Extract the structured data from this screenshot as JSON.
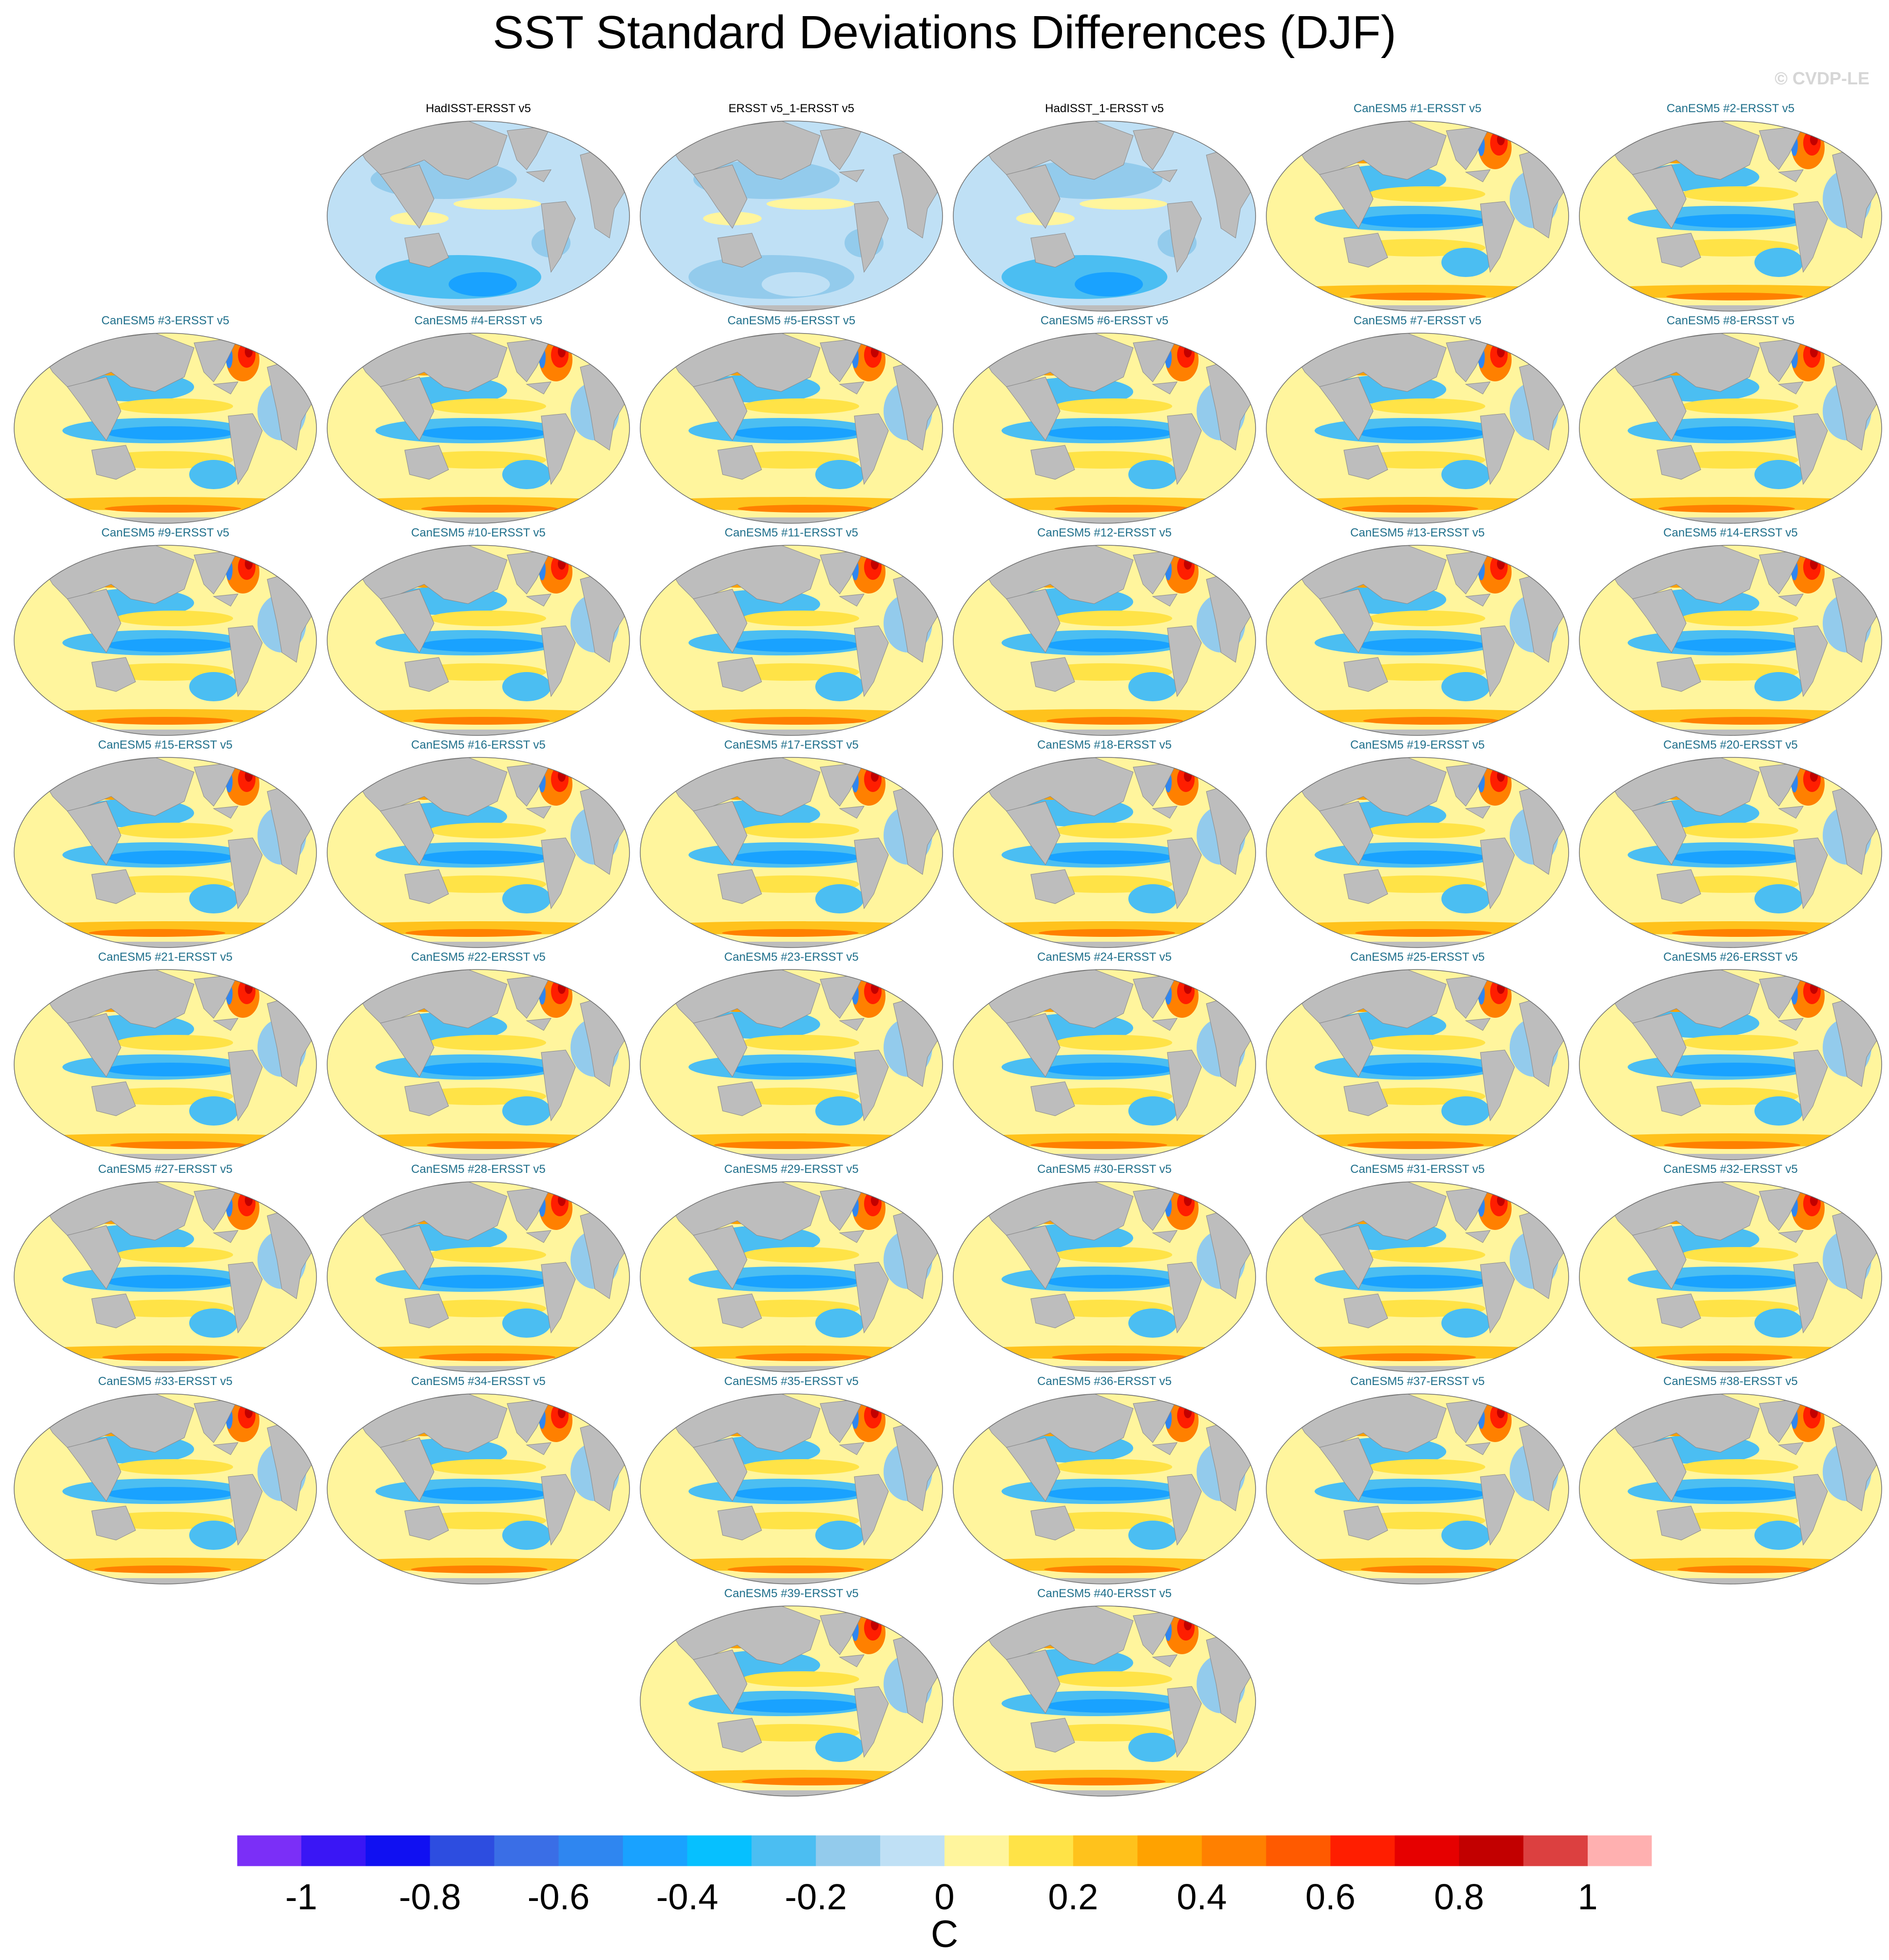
{
  "title": "SST Standard Deviations Differences (DJF)",
  "copyright": "© CVDP-LE",
  "colors": {
    "land": "#bdbdbd",
    "obs_title": "#000000",
    "model_title": "#1f6f8b"
  },
  "panels": [
    {
      "label": "HadISST-ERSST v5",
      "kind": "obs"
    },
    {
      "label": "ERSST v5_1-ERSST v5",
      "kind": "obs"
    },
    {
      "label": "HadISST_1-ERSST v5",
      "kind": "obs"
    },
    {
      "label": "CanESM5 #1-ERSST v5",
      "kind": "model"
    },
    {
      "label": "CanESM5 #2-ERSST v5",
      "kind": "model"
    },
    {
      "label": "CanESM5 #3-ERSST v5",
      "kind": "model"
    },
    {
      "label": "CanESM5 #4-ERSST v5",
      "kind": "model"
    },
    {
      "label": "CanESM5 #5-ERSST v5",
      "kind": "model"
    },
    {
      "label": "CanESM5 #6-ERSST v5",
      "kind": "model"
    },
    {
      "label": "CanESM5 #7-ERSST v5",
      "kind": "model"
    },
    {
      "label": "CanESM5 #8-ERSST v5",
      "kind": "model"
    },
    {
      "label": "CanESM5 #9-ERSST v5",
      "kind": "model"
    },
    {
      "label": "CanESM5 #10-ERSST v5",
      "kind": "model"
    },
    {
      "label": "CanESM5 #11-ERSST v5",
      "kind": "model"
    },
    {
      "label": "CanESM5 #12-ERSST v5",
      "kind": "model"
    },
    {
      "label": "CanESM5 #13-ERSST v5",
      "kind": "model"
    },
    {
      "label": "CanESM5 #14-ERSST v5",
      "kind": "model"
    },
    {
      "label": "CanESM5 #15-ERSST v5",
      "kind": "model"
    },
    {
      "label": "CanESM5 #16-ERSST v5",
      "kind": "model"
    },
    {
      "label": "CanESM5 #17-ERSST v5",
      "kind": "model"
    },
    {
      "label": "CanESM5 #18-ERSST v5",
      "kind": "model"
    },
    {
      "label": "CanESM5 #19-ERSST v5",
      "kind": "model"
    },
    {
      "label": "CanESM5 #20-ERSST v5",
      "kind": "model"
    },
    {
      "label": "CanESM5 #21-ERSST v5",
      "kind": "model"
    },
    {
      "label": "CanESM5 #22-ERSST v5",
      "kind": "model"
    },
    {
      "label": "CanESM5 #23-ERSST v5",
      "kind": "model"
    },
    {
      "label": "CanESM5 #24-ERSST v5",
      "kind": "model"
    },
    {
      "label": "CanESM5 #25-ERSST v5",
      "kind": "model"
    },
    {
      "label": "CanESM5 #26-ERSST v5",
      "kind": "model"
    },
    {
      "label": "CanESM5 #27-ERSST v5",
      "kind": "model"
    },
    {
      "label": "CanESM5 #28-ERSST v5",
      "kind": "model"
    },
    {
      "label": "CanESM5 #29-ERSST v5",
      "kind": "model"
    },
    {
      "label": "CanESM5 #30-ERSST v5",
      "kind": "model"
    },
    {
      "label": "CanESM5 #31-ERSST v5",
      "kind": "model"
    },
    {
      "label": "CanESM5 #32-ERSST v5",
      "kind": "model"
    },
    {
      "label": "CanESM5 #33-ERSST v5",
      "kind": "model"
    },
    {
      "label": "CanESM5 #34-ERSST v5",
      "kind": "model"
    },
    {
      "label": "CanESM5 #35-ERSST v5",
      "kind": "model"
    },
    {
      "label": "CanESM5 #36-ERSST v5",
      "kind": "model"
    },
    {
      "label": "CanESM5 #37-ERSST v5",
      "kind": "model"
    },
    {
      "label": "CanESM5 #38-ERSST v5",
      "kind": "model"
    },
    {
      "label": "CanESM5 #39-ERSST v5",
      "kind": "model"
    },
    {
      "label": "CanESM5 #40-ERSST v5",
      "kind": "model"
    }
  ],
  "colorbar": {
    "unit": "C",
    "colors": [
      "#7b2ff7",
      "#3a16f5",
      "#1010f2",
      "#2d4de0",
      "#3a6ee6",
      "#2f86f0",
      "#19a2ff",
      "#06c0ff",
      "#4bbef2",
      "#93cbec",
      "#bfe0f5",
      "#fff59d",
      "#ffe347",
      "#ffc21c",
      "#ffa200",
      "#ff8000",
      "#ff5a00",
      "#ff1e00",
      "#e60000",
      "#c20000",
      "#dc4040",
      "#ffb0b0"
    ],
    "tick_labels": [
      "-1",
      "-0.8",
      "-0.6",
      "-0.4",
      "-0.2",
      "0",
      "0.2",
      "0.4",
      "0.6",
      "0.8",
      "1"
    ]
  }
}
